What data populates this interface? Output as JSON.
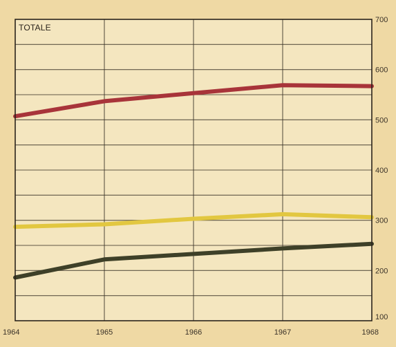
{
  "chart_data": {
    "type": "line",
    "title": "",
    "panel_label": "TOTALE",
    "xlabel": "",
    "ylabel": "",
    "x": [
      1964,
      1965,
      1966,
      1967,
      1968
    ],
    "x_tick_labels": [
      "1964",
      "1965",
      "1966",
      "1967",
      "1968"
    ],
    "y_tick_labels": [
      "100",
      "200",
      "300",
      "400",
      "500",
      "600",
      "700"
    ],
    "xlim": [
      1964,
      1968
    ],
    "ylim": [
      100,
      700
    ],
    "grid": true,
    "legend": "none",
    "background_color": "#efd9a4",
    "plot_background_color": "#f4e6bf",
    "grid_color": "#3a3228",
    "series": [
      {
        "color": "#a8343a",
        "values": [
          507,
          537,
          553,
          569,
          567
        ]
      },
      {
        "color": "#e2c740",
        "values": [
          287,
          292,
          303,
          312,
          306
        ]
      },
      {
        "color": "#3e4028",
        "values": [
          186,
          222,
          233,
          244,
          253
        ]
      }
    ]
  }
}
